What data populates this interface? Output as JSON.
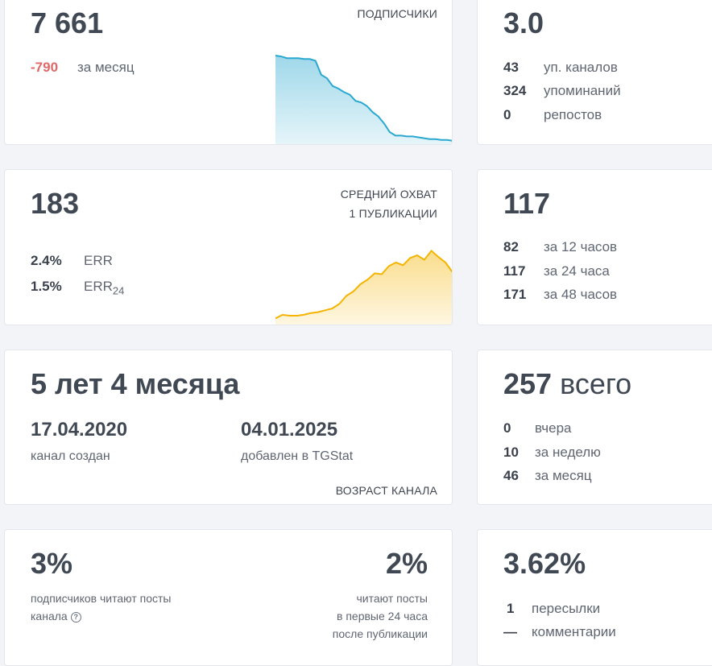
{
  "subscribers": {
    "value": "7 661",
    "caption": "ПОДПИСЧИКИ",
    "delta": "-790",
    "delta_label": "за месяц",
    "trend": [
      100,
      99,
      97,
      97,
      97,
      96,
      96,
      94,
      78,
      74,
      65,
      62,
      58,
      55,
      48,
      46,
      42,
      35,
      30,
      22,
      12,
      8,
      8,
      7,
      7,
      6,
      5,
      4,
      4,
      3,
      3,
      2
    ],
    "color": "#2aa8d0"
  },
  "citation_index": {
    "value": "3.0",
    "rows": [
      {
        "num": "43",
        "label": "уп. каналов"
      },
      {
        "num": "324",
        "label": "упоминаний"
      },
      {
        "num": "0",
        "label": "репостов"
      }
    ]
  },
  "avg_reach": {
    "value": "183",
    "caption_line1": "СРЕДНИЙ ОХВАТ",
    "caption_line2": "1 ПУБЛИКАЦИИ",
    "err_value": "2.4%",
    "err_label": "ERR",
    "err24_value": "1.5%",
    "err24_label": "ERR",
    "err24_sub": "24",
    "trend": [
      5,
      9,
      8,
      8,
      9,
      11,
      12,
      14,
      16,
      21,
      30,
      35,
      43,
      48,
      55,
      54,
      63,
      67,
      64,
      72,
      75,
      70,
      80,
      73,
      67,
      56
    ],
    "color": "#f4b400"
  },
  "views": {
    "value": "117",
    "rows": [
      {
        "num": "82",
        "label": "за 12 часов"
      },
      {
        "num": "117",
        "label": "за 24 часа"
      },
      {
        "num": "171",
        "label": "за 48 часов"
      }
    ]
  },
  "age": {
    "value": "5 лет 4 месяца",
    "created_date": "17.04.2020",
    "created_label": "канал создан",
    "added_date": "04.01.2025",
    "added_label": "добавлен в TGStat",
    "caption": "ВОЗРАСТ КАНАЛА"
  },
  "posts": {
    "value": "257",
    "value_suffix": "всего",
    "rows": [
      {
        "num": "0",
        "label": "вчера"
      },
      {
        "num": "10",
        "label": "за неделю"
      },
      {
        "num": "46",
        "label": "за месяц"
      }
    ]
  },
  "engagement": {
    "left_value": "3%",
    "left_line1": "подписчиков читают посты",
    "left_line2": "канала",
    "right_value": "2%",
    "right_line1": "читают посты",
    "right_line2": "в первые 24 часа",
    "right_line3": "после публикации",
    "help_icon": "question-circle-icon"
  },
  "er": {
    "value": "3.62%",
    "rows": [
      {
        "num": "1",
        "label": "пересылки"
      },
      {
        "num": "—",
        "label": "комментарии"
      }
    ]
  }
}
